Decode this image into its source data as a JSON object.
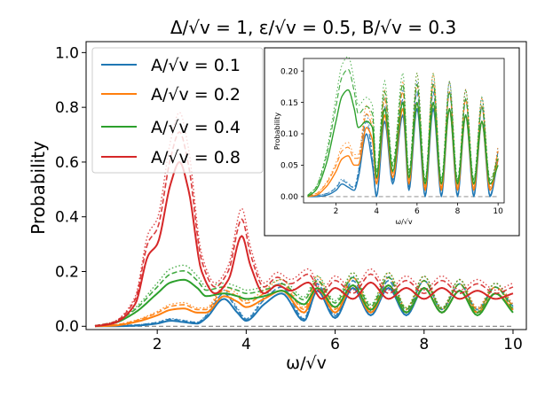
{
  "chart_data": {
    "type": "line",
    "title": "Δ/√v = 1, ε/√v = 0.5, B/√v = 0.3",
    "xlabel": "ω/√v",
    "ylabel": "Probability",
    "xlim": [
      0.4,
      10.3
    ],
    "ylim": [
      -0.012,
      1.04
    ],
    "xticks": [
      "2",
      "4",
      "6",
      "8",
      "10"
    ],
    "yticks": [
      "0.0",
      "0.2",
      "0.4",
      "0.6",
      "0.8",
      "1.0"
    ],
    "grid": false,
    "legend_position": "top-left",
    "baseline": {
      "y": 0,
      "style": "dashed",
      "color": "#808080"
    },
    "series": [
      {
        "name": "A/√v = 0.1",
        "color": "#1f77b4",
        "x": [
          0.6,
          1.0,
          1.5,
          2.0,
          2.3,
          2.6,
          2.9,
          3.1,
          3.5,
          3.8,
          4.0,
          4.4,
          4.8,
          5.3,
          5.6,
          6.0,
          6.4,
          6.8,
          7.2,
          7.6,
          8.0,
          8.4,
          8.8,
          9.2,
          9.6,
          10.0
        ],
        "y": [
          0.0,
          0.0,
          0.002,
          0.01,
          0.02,
          0.015,
          0.01,
          0.03,
          0.1,
          0.05,
          0.02,
          0.08,
          0.12,
          0.02,
          0.13,
          0.03,
          0.14,
          0.04,
          0.14,
          0.04,
          0.14,
          0.05,
          0.13,
          0.05,
          0.12,
          0.06
        ]
      },
      {
        "name": "A/√v = 0.2",
        "color": "#ff7f0e",
        "x": [
          0.6,
          1.0,
          1.5,
          2.0,
          2.3,
          2.6,
          2.9,
          3.1,
          3.5,
          3.8,
          4.0,
          4.4,
          4.8,
          5.3,
          5.6,
          6.0,
          6.4,
          6.8,
          7.2,
          7.6,
          8.0,
          8.4,
          8.8,
          9.2,
          9.6,
          10.0
        ],
        "y": [
          0.0,
          0.002,
          0.015,
          0.04,
          0.06,
          0.065,
          0.05,
          0.05,
          0.11,
          0.09,
          0.07,
          0.1,
          0.13,
          0.05,
          0.14,
          0.05,
          0.15,
          0.05,
          0.15,
          0.05,
          0.14,
          0.05,
          0.13,
          0.05,
          0.12,
          0.06
        ]
      },
      {
        "name": "A/√v = 0.4",
        "color": "#2ca02c",
        "x": [
          0.6,
          1.0,
          1.5,
          2.0,
          2.3,
          2.6,
          2.9,
          3.1,
          3.5,
          3.8,
          4.0,
          4.4,
          4.8,
          5.3,
          5.6,
          6.0,
          6.4,
          6.8,
          7.2,
          7.6,
          8.0,
          8.4,
          8.8,
          9.2,
          9.6,
          10.0
        ],
        "y": [
          0.0,
          0.01,
          0.05,
          0.12,
          0.16,
          0.17,
          0.14,
          0.11,
          0.12,
          0.11,
          0.1,
          0.11,
          0.13,
          0.08,
          0.14,
          0.07,
          0.15,
          0.06,
          0.15,
          0.05,
          0.14,
          0.05,
          0.13,
          0.04,
          0.12,
          0.05
        ]
      },
      {
        "name": "A/√v = 0.8",
        "color": "#d62728",
        "x": [
          0.6,
          1.0,
          1.5,
          1.8,
          2.0,
          2.3,
          2.5,
          2.7,
          3.0,
          3.3,
          3.6,
          3.9,
          4.1,
          4.4,
          4.7,
          5.0,
          5.4,
          5.7,
          6.0,
          6.4,
          6.8,
          7.2,
          7.6,
          8.0,
          8.4,
          8.8,
          9.2,
          9.6,
          10.0
        ],
        "y": [
          0.0,
          0.01,
          0.08,
          0.26,
          0.3,
          0.52,
          0.6,
          0.5,
          0.2,
          0.12,
          0.17,
          0.33,
          0.22,
          0.12,
          0.15,
          0.13,
          0.16,
          0.1,
          0.14,
          0.1,
          0.16,
          0.1,
          0.14,
          0.1,
          0.14,
          0.1,
          0.13,
          0.1,
          0.12
        ]
      }
    ],
    "inset": {
      "type": "line",
      "xlabel": "ω/√v",
      "ylabel": "Probability",
      "xlim": [
        0.4,
        10.3
      ],
      "ylim": [
        -0.01,
        0.22
      ],
      "xticks": [
        "2",
        "4",
        "6",
        "8",
        "10"
      ],
      "yticks": [
        "0.00",
        "0.05",
        "0.10",
        "0.15",
        "0.20"
      ],
      "series": [
        {
          "color": "#1f77b4",
          "x": [
            0.6,
            1.0,
            1.5,
            2.0,
            2.3,
            2.6,
            2.9,
            3.1,
            3.5,
            3.8,
            4.0,
            4.4,
            4.8,
            5.3,
            5.6,
            6.0,
            6.4,
            6.8,
            7.2,
            7.6,
            8.0,
            8.4,
            8.8,
            9.2,
            9.6,
            10.0
          ],
          "y": [
            0.0,
            0.0,
            0.002,
            0.01,
            0.02,
            0.015,
            0.01,
            0.03,
            0.1,
            0.05,
            0.0,
            0.12,
            0.02,
            0.13,
            0.01,
            0.14,
            0.0,
            0.14,
            0.0,
            0.14,
            0.0,
            0.13,
            0.0,
            0.12,
            0.0,
            0.06
          ]
        },
        {
          "color": "#ff7f0e",
          "x": [
            0.6,
            1.0,
            1.5,
            2.0,
            2.3,
            2.6,
            2.9,
            3.1,
            3.5,
            3.8,
            4.0,
            4.4,
            4.8,
            5.3,
            5.6,
            6.0,
            6.4,
            6.8,
            7.2,
            7.6,
            8.0,
            8.4,
            8.8,
            9.2,
            9.6,
            10.0
          ],
          "y": [
            0.0,
            0.002,
            0.015,
            0.04,
            0.06,
            0.065,
            0.05,
            0.05,
            0.11,
            0.09,
            0.02,
            0.13,
            0.03,
            0.14,
            0.02,
            0.15,
            0.01,
            0.15,
            0.01,
            0.14,
            0.01,
            0.13,
            0.01,
            0.12,
            0.01,
            0.06
          ]
        },
        {
          "color": "#2ca02c",
          "x": [
            0.6,
            1.0,
            1.5,
            2.0,
            2.3,
            2.6,
            2.9,
            3.1,
            3.5,
            3.8,
            4.0,
            4.4,
            4.8,
            5.3,
            5.6,
            6.0,
            6.4,
            6.8,
            7.2,
            7.6,
            8.0,
            8.4,
            8.8,
            9.2,
            9.6,
            10.0
          ],
          "y": [
            0.0,
            0.01,
            0.05,
            0.12,
            0.16,
            0.17,
            0.14,
            0.11,
            0.12,
            0.11,
            0.03,
            0.14,
            0.04,
            0.15,
            0.03,
            0.15,
            0.02,
            0.15,
            0.02,
            0.14,
            0.02,
            0.13,
            0.02,
            0.12,
            0.02,
            0.05
          ]
        }
      ]
    }
  }
}
